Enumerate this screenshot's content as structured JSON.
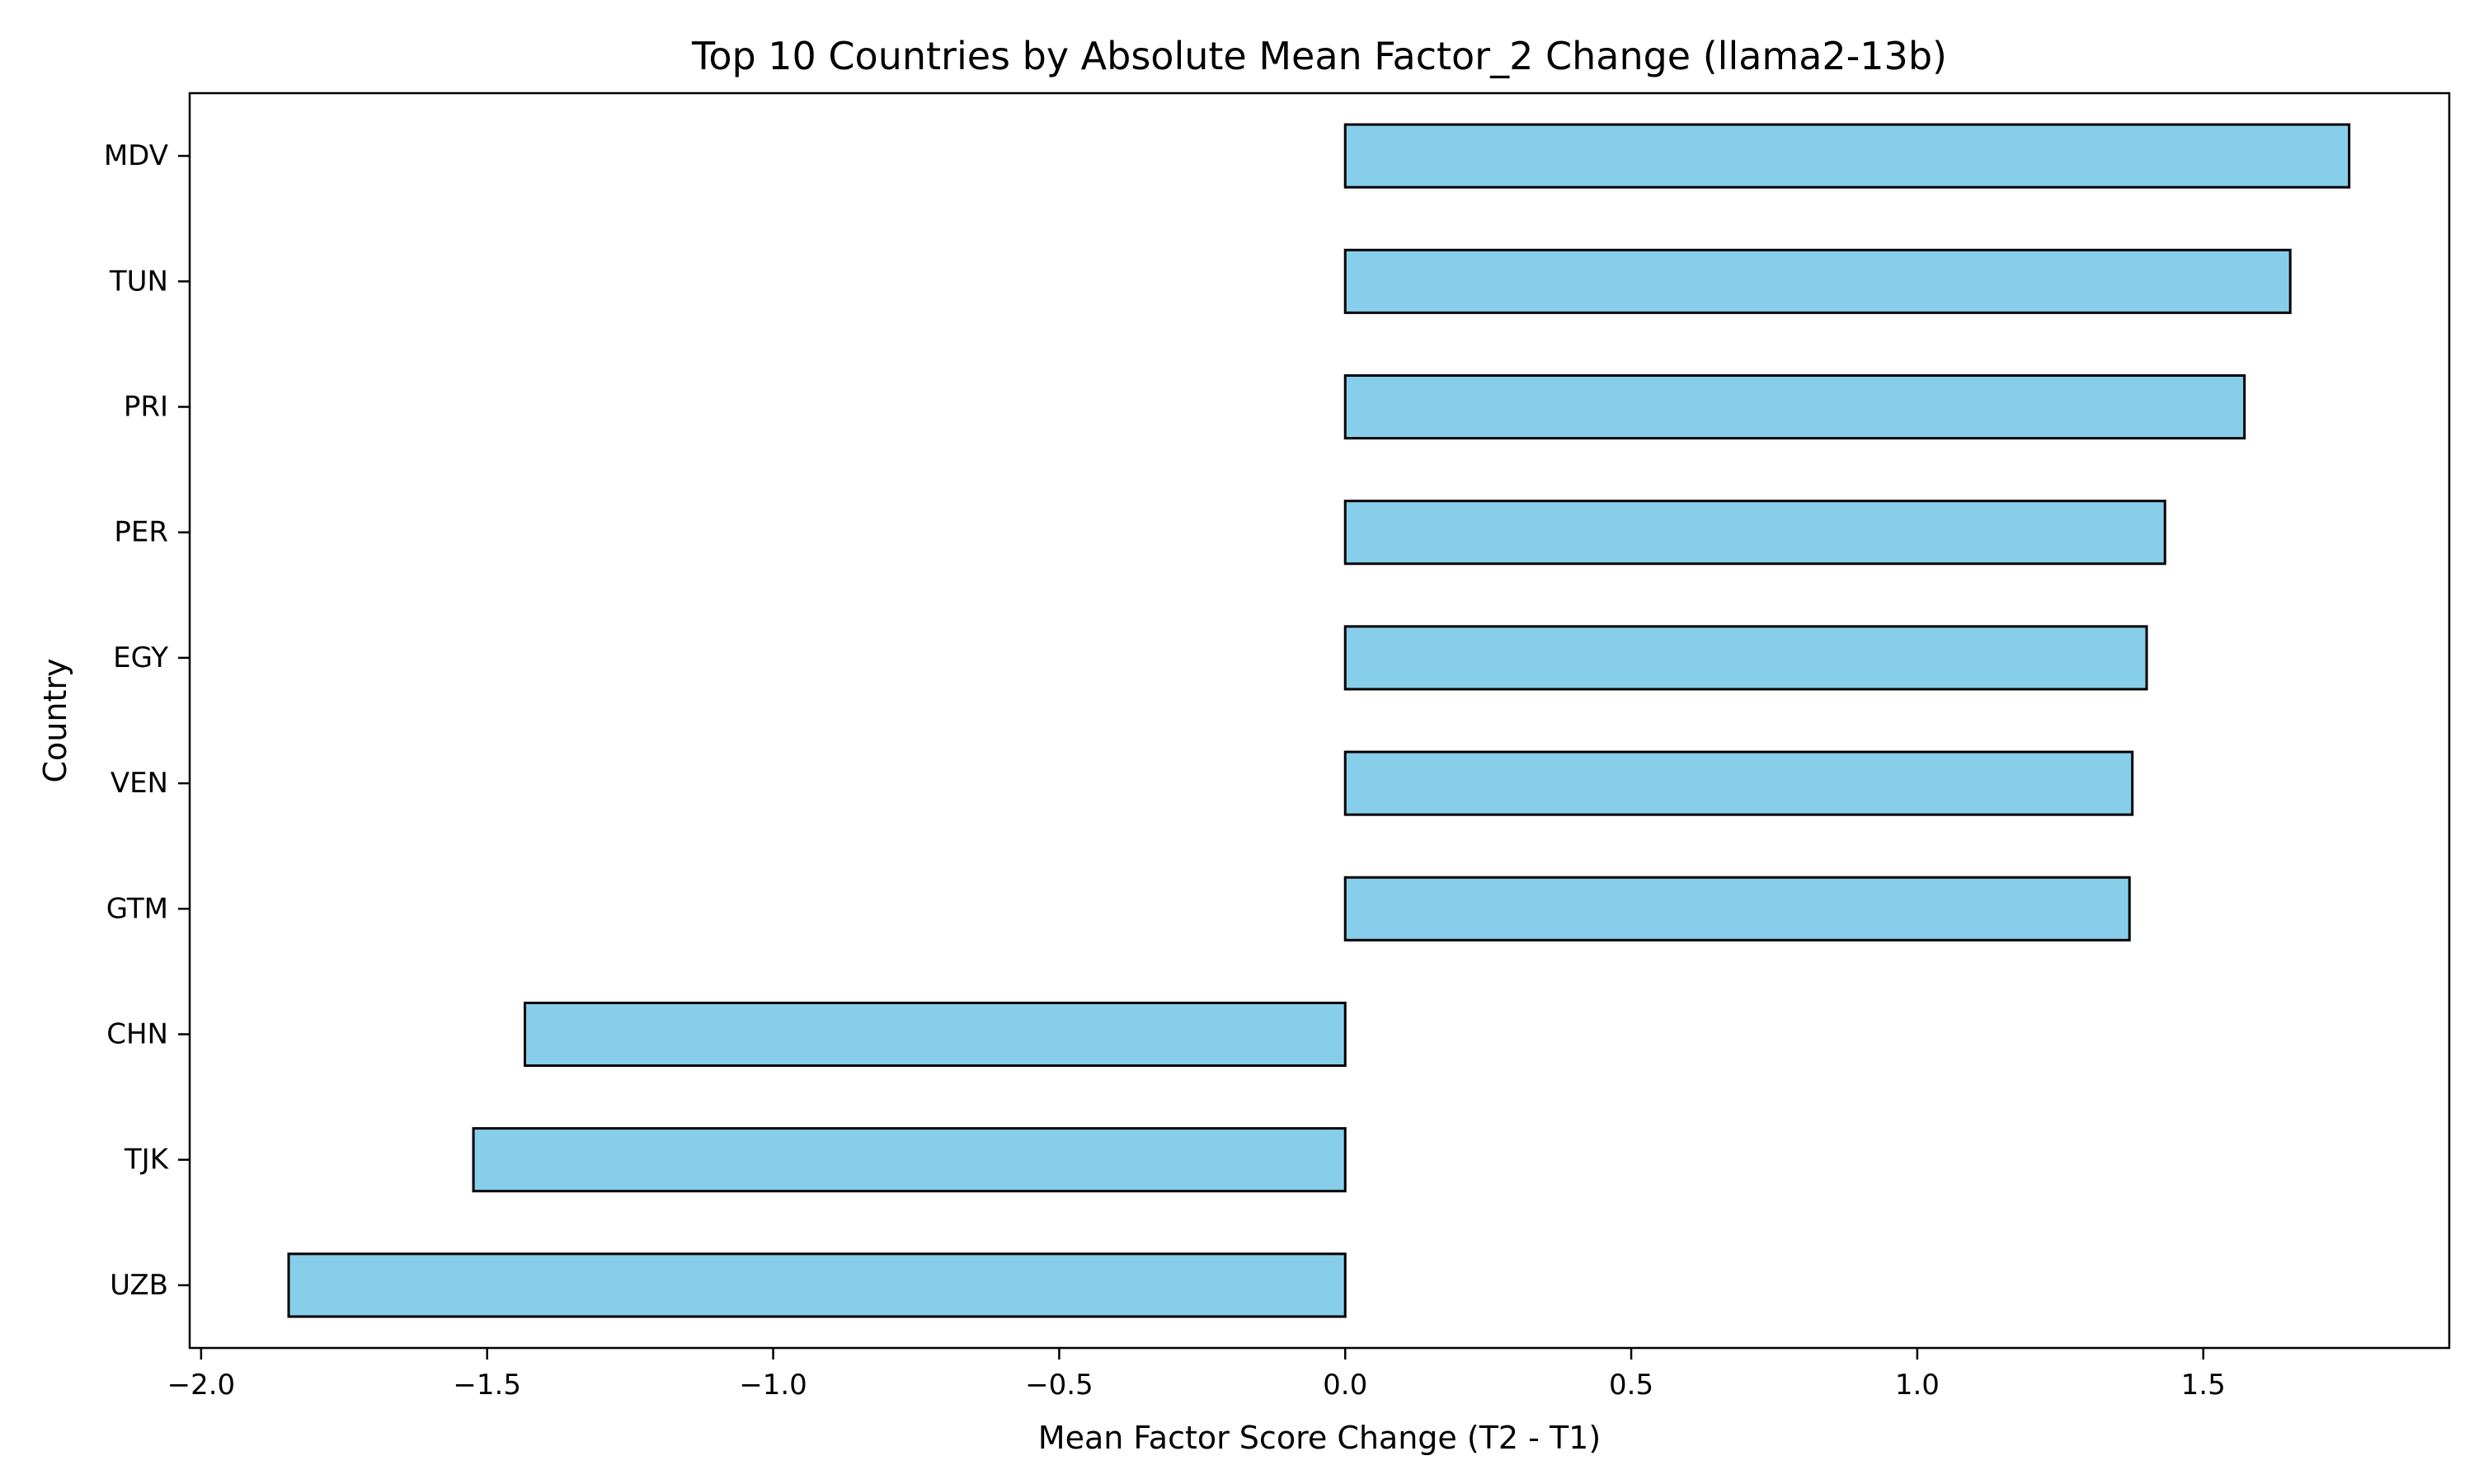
{
  "chart_data": {
    "type": "bar",
    "orientation": "horizontal",
    "title": "Top 10 Countries by Absolute Mean Factor_2 Change (llama2-13b)",
    "xlabel": "Mean Factor Score Change (T2 - T1)",
    "ylabel": "Country",
    "categories": [
      "MDV",
      "TUN",
      "PRI",
      "PER",
      "EGY",
      "VEN",
      "GTM",
      "CHN",
      "TJK",
      "UZB"
    ],
    "values": [
      1.755,
      1.652,
      1.572,
      1.433,
      1.401,
      1.376,
      1.371,
      -1.434,
      -1.524,
      -1.847
    ],
    "xlim": [
      -2.02,
      1.93
    ],
    "xticks": [
      -2.0,
      -1.5,
      -1.0,
      -0.5,
      0.0,
      0.5,
      1.0,
      1.5
    ],
    "xtick_labels": [
      "−2.0",
      "−1.5",
      "−1.0",
      "−0.5",
      "0.0",
      "0.5",
      "1.0",
      "1.5"
    ],
    "bar_color": "#87ceeb",
    "edge_color": "#000000",
    "grid": false,
    "legend": "none"
  }
}
